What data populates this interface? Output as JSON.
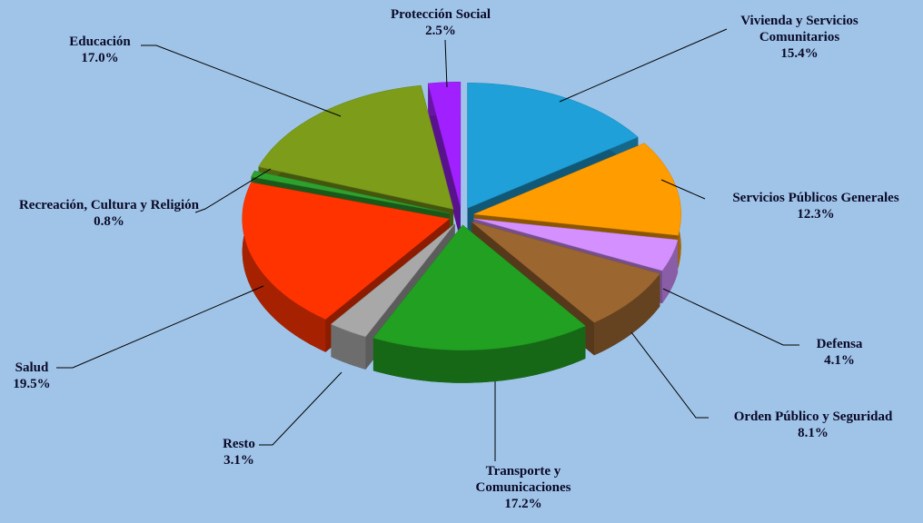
{
  "chart_data": {
    "type": "pie",
    "categories": [
      "Vivienda y Servicios Comunitarios",
      "Servicios Públicos Generales",
      "Defensa",
      "Orden Público y Seguridad",
      "Transporte y Comunicaciones",
      "Resto",
      "Salud",
      "Recreación, Cultura y Religión",
      "Educación",
      "Protección Social"
    ],
    "values": [
      15.4,
      12.3,
      4.1,
      8.1,
      17.2,
      3.1,
      19.5,
      0.8,
      17.0,
      2.5
    ],
    "value_labels": [
      "15.4%",
      "12.3%",
      "4.1%",
      "8.1%",
      "17.2%",
      "3.1%",
      "19.5%",
      "0.8%",
      "17.0%",
      "2.5%"
    ],
    "colors": [
      "#1fa0d8",
      "#ff9c00",
      "#d590ff",
      "#9c6631",
      "#22a022",
      "#a8a8a8",
      "#ff3300",
      "#2ea02e",
      "#7c9c1a",
      "#a020ff"
    ]
  }
}
